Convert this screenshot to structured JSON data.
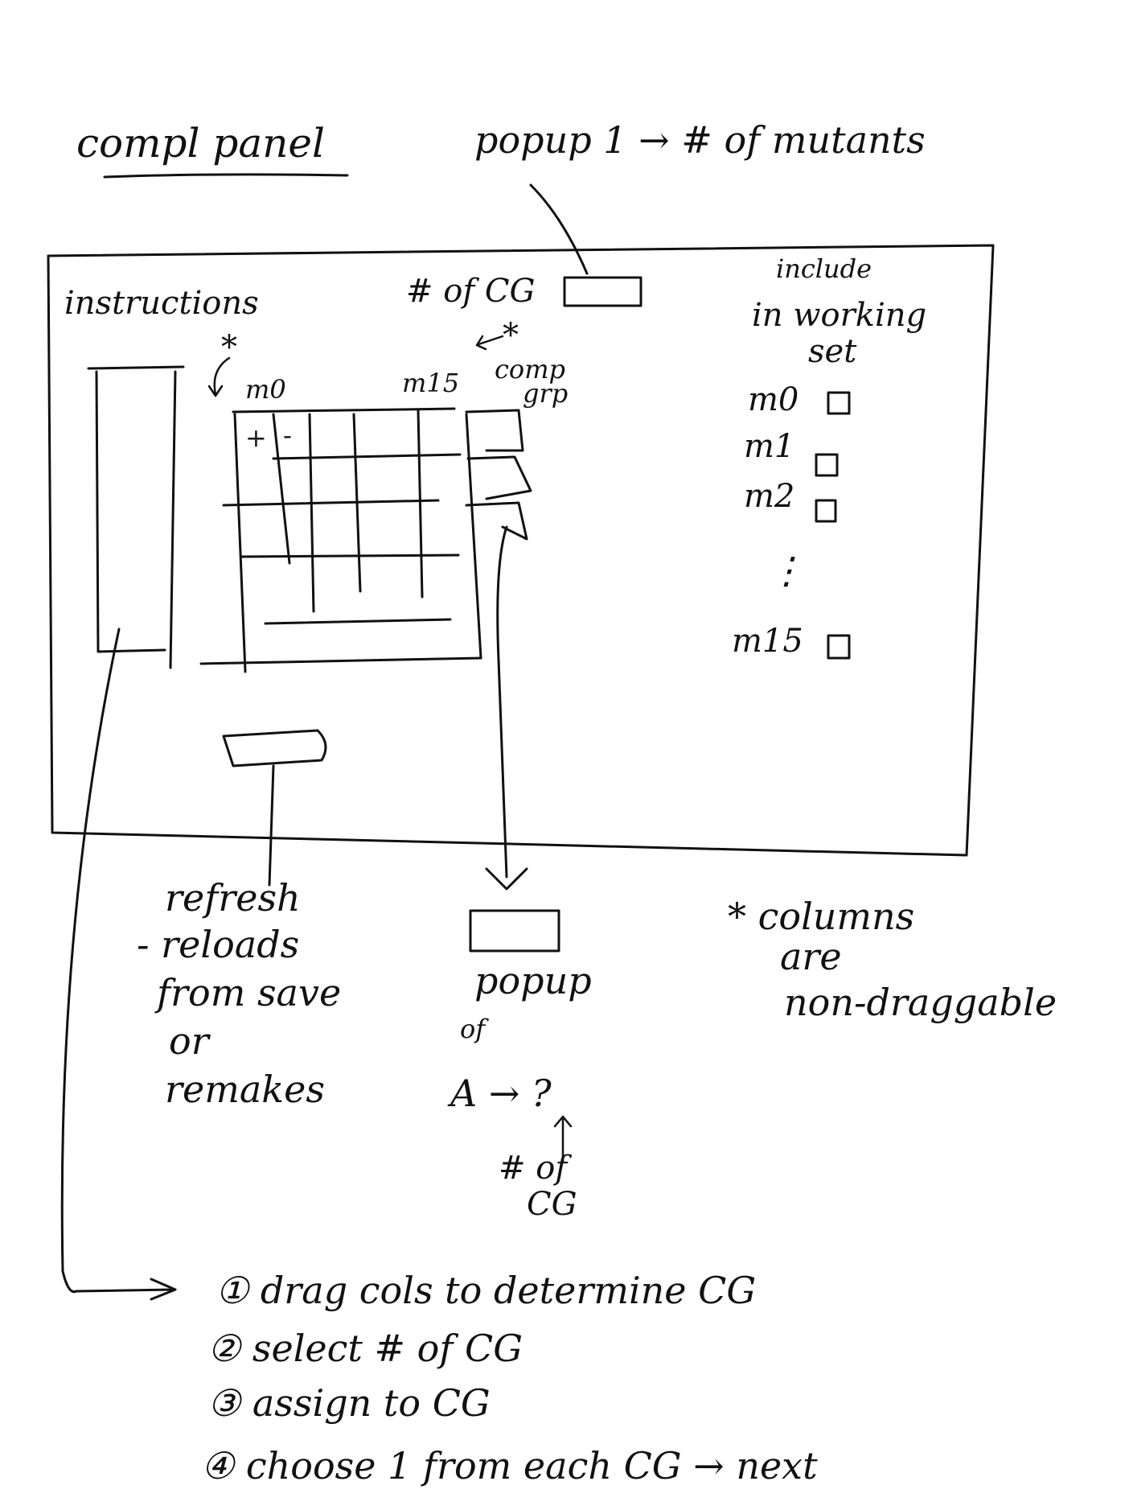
{
  "title": "compl panel",
  "popup_top": "popup 1 → # of mutants",
  "panel": {
    "instructions_label": "instructions",
    "num_cg_label": "# of CG",
    "star_mark": "*",
    "comp_grp_label_line1": "comp",
    "comp_grp_label_line2": "grp",
    "col_first": "m0",
    "col_last": "m15",
    "cell_plus": "+",
    "cell_minus": "-",
    "include_title_line1": "include",
    "include_title_line2": "in working",
    "include_title_line3": "set",
    "include_items": [
      "m0",
      "m1",
      "m2",
      "m15"
    ],
    "vertical_ellipsis": "⋮"
  },
  "refresh_note": {
    "line1": "refresh",
    "line2": "- reloads",
    "line3": "from save",
    "line4": "or",
    "line5": "remakes"
  },
  "popup_bottom": {
    "line1": "popup",
    "line2": "of",
    "line3": "A → ?",
    "line4": "# of",
    "line5": "CG"
  },
  "columns_note": {
    "line1": "* columns",
    "line2": "are",
    "line3": "non-draggable"
  },
  "steps": [
    "① drag cols to determine CG",
    "② select # of CG",
    "③ assign to CG",
    "④ choose 1 from each CG → next"
  ]
}
